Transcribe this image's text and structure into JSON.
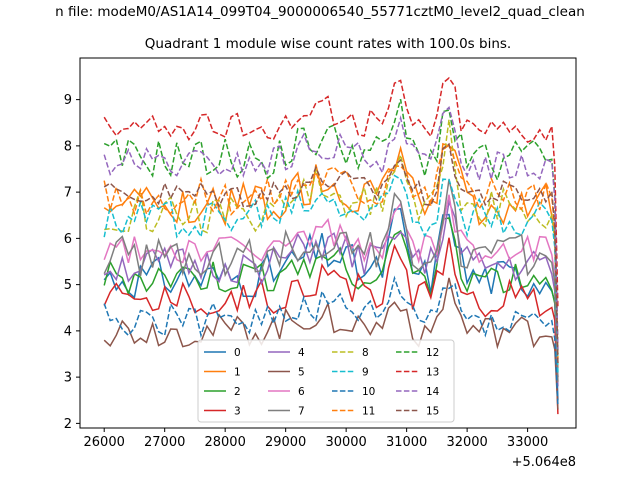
{
  "figure": {
    "suptitle": "n file: modeM0/AS1A14_099T04_9000006540_55771cztM0_level2_quad_clean",
    "title": "Quadrant 1 module wise count rates with 100.0s bins."
  },
  "chart_data": {
    "type": "line",
    "title": "Quadrant 1 module wise count rates with 100.0s bins.",
    "xlabel": "",
    "ylabel": "",
    "x_offset_label": "+5.064e8",
    "xlim": [
      25600,
      33800
    ],
    "ylim": [
      1.9,
      9.9
    ],
    "xticks": [
      26000,
      27000,
      28000,
      29000,
      30000,
      31000,
      32000,
      33000
    ],
    "yticks": [
      2,
      3,
      4,
      5,
      6,
      7,
      8,
      9
    ],
    "legend_location": "lower-center",
    "legend_columns": 4,
    "series": [
      {
        "name": "0",
        "color": "#1f77b4",
        "dash": "solid",
        "base": 5.15,
        "amp": 0.28,
        "peak": 1.6,
        "end": 2.5
      },
      {
        "name": "1",
        "color": "#ff7f0e",
        "dash": "solid",
        "base": 6.75,
        "amp": 0.28,
        "peak": 1.4,
        "end": 3.2
      },
      {
        "name": "2",
        "color": "#2ca02c",
        "dash": "solid",
        "base": 5.1,
        "amp": 0.25,
        "peak": 1.4,
        "end": 3.0
      },
      {
        "name": "3",
        "color": "#d62728",
        "dash": "solid",
        "base": 4.7,
        "amp": 0.25,
        "peak": 1.3,
        "end": 2.2
      },
      {
        "name": "4",
        "color": "#9467bd",
        "dash": "solid",
        "base": 5.4,
        "amp": 0.25,
        "peak": 1.3,
        "end": 2.8
      },
      {
        "name": "5",
        "color": "#8c564b",
        "dash": "solid",
        "base": 4.0,
        "amp": 0.22,
        "peak": 1.0,
        "end": 2.3
      },
      {
        "name": "6",
        "color": "#e377c2",
        "dash": "solid",
        "base": 5.75,
        "amp": 0.2,
        "peak": 1.0,
        "end": 3.0
      },
      {
        "name": "7",
        "color": "#7f7f7f",
        "dash": "solid",
        "base": 5.6,
        "amp": 0.3,
        "peak": 1.3,
        "end": 2.9
      },
      {
        "name": "8",
        "color": "#bcbd22",
        "dash": "dashed",
        "base": 6.6,
        "amp": 0.3,
        "peak": 1.5,
        "end": 3.3
      },
      {
        "name": "9",
        "color": "#17becf",
        "dash": "dashed",
        "base": 6.45,
        "amp": 0.28,
        "peak": 1.2,
        "end": 3.1
      },
      {
        "name": "10",
        "color": "#1f77b4",
        "dash": "dashed",
        "base": 4.25,
        "amp": 0.22,
        "peak": 0.9,
        "end": 2.4
      },
      {
        "name": "11",
        "color": "#ff7f0e",
        "dash": "dashed",
        "base": 6.9,
        "amp": 0.25,
        "peak": 1.3,
        "end": 3.4
      },
      {
        "name": "12",
        "color": "#2ca02c",
        "dash": "dashed",
        "base": 7.7,
        "amp": 0.28,
        "peak": 1.2,
        "end": 3.5
      },
      {
        "name": "13",
        "color": "#d62728",
        "dash": "dashed",
        "base": 8.4,
        "amp": 0.2,
        "peak": 1.1,
        "end": 4.5
      },
      {
        "name": "14",
        "color": "#9467bd",
        "dash": "dashed",
        "base": 7.6,
        "amp": 0.22,
        "peak": 1.2,
        "end": 3.6
      },
      {
        "name": "15",
        "color": "#8c564b",
        "dash": "dashed",
        "base": 6.95,
        "amp": 0.2,
        "peak": 1.0,
        "end": 3.3
      }
    ]
  }
}
